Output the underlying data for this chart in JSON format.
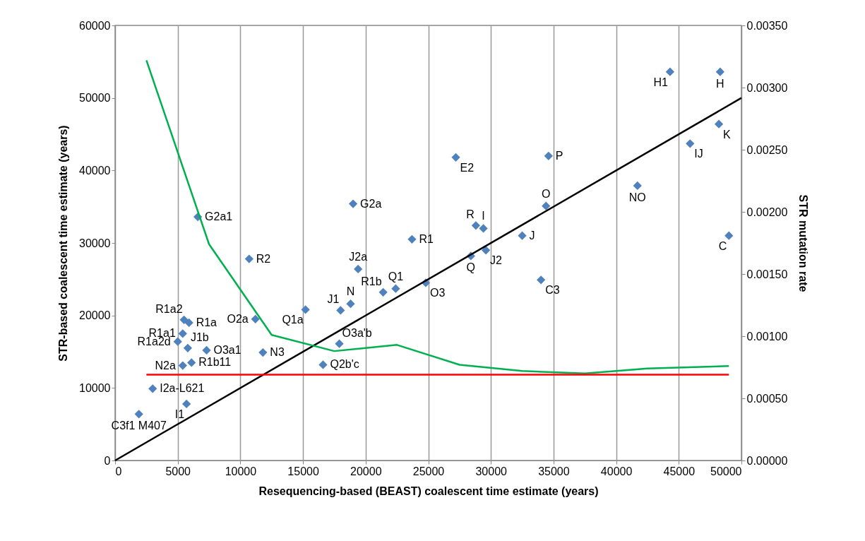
{
  "chart_data": {
    "type": "scatter",
    "xlabel": "Resequencing-based (BEAST) coalescent time estimate (years)",
    "ylabel": "STR-based coalescent time estimate (years)",
    "y2label": "STR mutation rate",
    "xlim": [
      0,
      50000
    ],
    "xticks": [
      0,
      5000,
      10000,
      15000,
      20000,
      25000,
      30000,
      35000,
      40000,
      45000,
      50000
    ],
    "ylim": [
      0,
      60000
    ],
    "yticks": [
      0,
      10000,
      20000,
      30000,
      40000,
      50000,
      60000
    ],
    "y2lim": [
      0,
      0.0035
    ],
    "y2ticks": [
      {
        "value": 0,
        "label": "0.00000"
      },
      {
        "value": 0.0005,
        "label": "0.00050"
      },
      {
        "value": 0.001,
        "label": "0.00100"
      },
      {
        "value": 0.0015,
        "label": "0.00150"
      },
      {
        "value": 0.002,
        "label": "0.00200"
      },
      {
        "value": 0.0025,
        "label": "0.00250"
      },
      {
        "value": 0.003,
        "label": "0.00300"
      },
      {
        "value": 0.0035,
        "label": "0.00350"
      }
    ],
    "grid": "x",
    "series": [
      {
        "type": "scatter",
        "color": "#4f81bd",
        "marker": "diamond",
        "x": [
          1900,
          3000,
          5700,
          5400,
          6100,
          5000,
          5400,
          5500,
          5900,
          5800,
          7300,
          11800,
          11200,
          15200,
          18000,
          18800,
          21400,
          22400,
          24800,
          17900,
          16600,
          10700,
          6600,
          19000,
          19400,
          23700,
          28800,
          29400,
          28400,
          29600,
          32500,
          34400,
          34000,
          27200,
          34600,
          41700,
          49000,
          45900,
          48200,
          44300,
          48300
        ],
        "values": [
          6400,
          9900,
          7800,
          13100,
          13500,
          16400,
          17500,
          19400,
          19000,
          15500,
          15200,
          14900,
          19500,
          20800,
          20700,
          21600,
          23200,
          23700,
          24500,
          16100,
          13200,
          27800,
          33600,
          35400,
          26400,
          30500,
          32400,
          32000,
          28200,
          29000,
          31000,
          35100,
          24900,
          41800,
          42000,
          37900,
          31000,
          43700,
          46400,
          53600,
          53600
        ],
        "value_labels": [
          "C3f1 M407",
          "I2a-L621",
          "I1",
          "N2a",
          "R1b11",
          "R1a2d",
          "R1a1",
          "R1a2",
          "R1a",
          "J1b",
          "O3a1",
          "N3",
          "O2a",
          "Q1a",
          "J1",
          "N",
          "R1b",
          "Q1",
          "O3",
          "O3a'b",
          "Q2b'c",
          "R2",
          "G2a1",
          "G2a",
          "J2a",
          "R1",
          "R",
          "I",
          "Q",
          "J2",
          "J",
          "O",
          "C3",
          "E2",
          "P",
          "NO",
          "C",
          "IJ",
          "K",
          "H1",
          "H"
        ]
      },
      {
        "type": "line",
        "color": "#000000",
        "x": [
          0,
          50000
        ],
        "values": [
          0,
          50000
        ]
      },
      {
        "type": "line",
        "axis": "y2",
        "color": "#00b050",
        "x": [
          2500,
          7500,
          12500,
          17500,
          22500,
          27500,
          32500,
          37500,
          42500,
          49000
        ],
        "values": [
          0.00322,
          0.00174,
          0.00101,
          0.00088,
          0.00093,
          0.00077,
          0.00072,
          0.0007,
          0.00074,
          0.00076
        ]
      },
      {
        "type": "line",
        "axis": "y2",
        "color": "#ff0000",
        "x": [
          2500,
          49000
        ],
        "values": [
          0.00069,
          0.00069
        ]
      }
    ]
  }
}
